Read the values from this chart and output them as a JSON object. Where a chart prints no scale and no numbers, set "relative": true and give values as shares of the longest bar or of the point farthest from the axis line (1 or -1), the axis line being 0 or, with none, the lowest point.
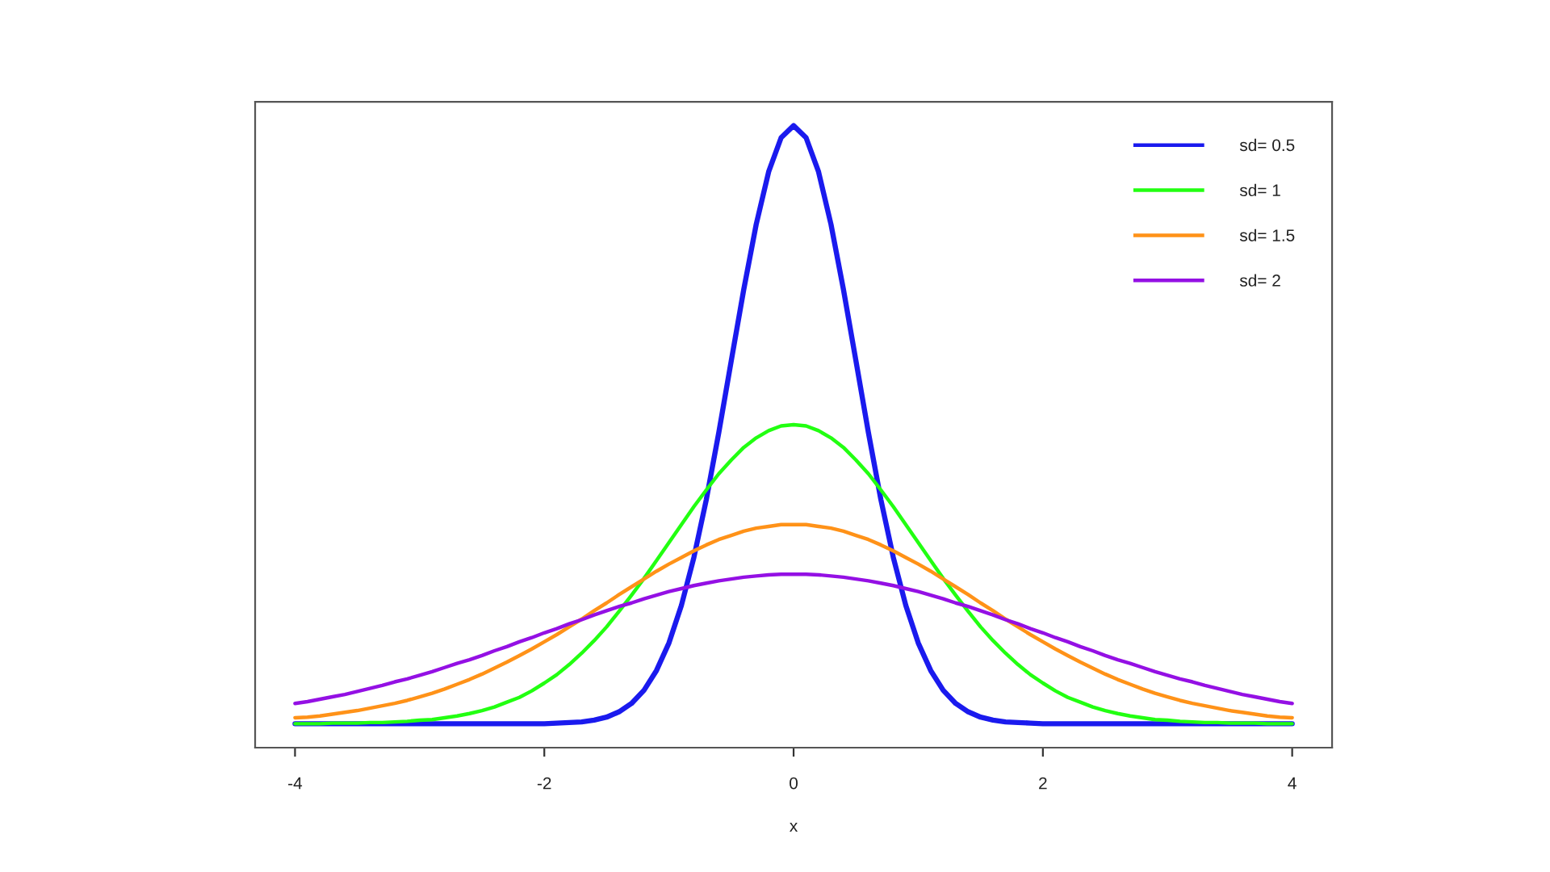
{
  "chart_data": {
    "type": "line",
    "relative": true,
    "xlabel": "x",
    "xlim": [
      -4.32,
      4.32
    ],
    "xticks": [
      -4,
      -2,
      0,
      2,
      4
    ],
    "legend": "top right",
    "line_style": "solid",
    "x": [
      -4,
      -3.9,
      -3.8,
      -3.7,
      -3.6,
      -3.5,
      -3.4,
      -3.3,
      -3.2,
      -3.1,
      -3,
      -2.9,
      -2.8,
      -2.7,
      -2.6,
      -2.5,
      -2.4,
      -2.3,
      -2.2,
      -2.1,
      -2,
      -1.9,
      -1.8,
      -1.7,
      -1.6,
      -1.5,
      -1.4,
      -1.3,
      -1.2,
      -1.1,
      -1,
      -0.9,
      -0.8,
      -0.7,
      -0.6,
      -0.5,
      -0.4,
      -0.3,
      -0.2,
      -0.1,
      0,
      0.1,
      0.2,
      0.3,
      0.4,
      0.5,
      0.6,
      0.7,
      0.8,
      0.9,
      1,
      1.1,
      1.2,
      1.3,
      1.4,
      1.5,
      1.6,
      1.7,
      1.8,
      1.9,
      2,
      2.1,
      2.2,
      2.3,
      2.4,
      2.5,
      2.6,
      2.7,
      2.8,
      2.9,
      3,
      3.1,
      3.2,
      3.3,
      3.4,
      3.5,
      3.6,
      3.7,
      3.8,
      3.9,
      4
    ],
    "series": [
      {
        "name": "sd= 0.5",
        "color": "#1a1aee",
        "values": [
          0,
          0,
          0,
          0,
          0,
          0,
          0,
          0,
          0,
          0,
          0,
          0,
          0,
          0,
          0,
          0,
          0,
          0,
          0,
          0,
          0,
          0.001,
          0.002,
          0.003,
          0.006,
          0.011,
          0.02,
          0.034,
          0.056,
          0.089,
          0.135,
          0.198,
          0.278,
          0.375,
          0.487,
          0.607,
          0.726,
          0.835,
          0.923,
          0.98,
          1,
          0.98,
          0.923,
          0.835,
          0.726,
          0.607,
          0.487,
          0.375,
          0.278,
          0.198,
          0.135,
          0.089,
          0.056,
          0.034,
          0.02,
          0.011,
          0.006,
          0.003,
          0.002,
          0.001,
          0,
          0,
          0,
          0,
          0,
          0,
          0,
          0,
          0,
          0,
          0,
          0,
          0,
          0,
          0,
          0,
          0,
          0,
          0,
          0,
          0
        ]
      },
      {
        "name": "sd= 1",
        "color": "#22ff11",
        "values": [
          0,
          0,
          0,
          0.001,
          0.001,
          0.001,
          0.002,
          0.002,
          0.003,
          0.004,
          0.006,
          0.007,
          0.01,
          0.013,
          0.017,
          0.022,
          0.028,
          0.036,
          0.044,
          0.055,
          0.068,
          0.082,
          0.099,
          0.118,
          0.139,
          0.162,
          0.188,
          0.215,
          0.243,
          0.273,
          0.303,
          0.333,
          0.363,
          0.391,
          0.418,
          0.441,
          0.462,
          0.478,
          0.49,
          0.498,
          0.5,
          0.498,
          0.49,
          0.478,
          0.462,
          0.441,
          0.418,
          0.391,
          0.363,
          0.333,
          0.303,
          0.273,
          0.243,
          0.215,
          0.188,
          0.162,
          0.139,
          0.118,
          0.099,
          0.082,
          0.068,
          0.055,
          0.044,
          0.036,
          0.028,
          0.022,
          0.017,
          0.013,
          0.01,
          0.007,
          0.006,
          0.004,
          0.003,
          0.002,
          0.002,
          0.001,
          0.001,
          0.001,
          0,
          0,
          0
        ]
      },
      {
        "name": "sd= 1.5",
        "color": "#ff9218",
        "values": [
          0.01,
          0.011,
          0.013,
          0.016,
          0.019,
          0.022,
          0.026,
          0.03,
          0.034,
          0.039,
          0.045,
          0.051,
          0.058,
          0.066,
          0.074,
          0.083,
          0.093,
          0.103,
          0.114,
          0.125,
          0.137,
          0.149,
          0.162,
          0.175,
          0.189,
          0.202,
          0.216,
          0.229,
          0.242,
          0.255,
          0.267,
          0.278,
          0.289,
          0.299,
          0.308,
          0.315,
          0.322,
          0.327,
          0.33,
          0.333,
          0.333,
          0.333,
          0.33,
          0.327,
          0.322,
          0.315,
          0.308,
          0.299,
          0.289,
          0.278,
          0.267,
          0.255,
          0.242,
          0.229,
          0.216,
          0.202,
          0.189,
          0.175,
          0.162,
          0.149,
          0.137,
          0.125,
          0.114,
          0.103,
          0.093,
          0.083,
          0.074,
          0.066,
          0.058,
          0.051,
          0.045,
          0.039,
          0.034,
          0.03,
          0.026,
          0.022,
          0.019,
          0.016,
          0.013,
          0.011,
          0.01
        ]
      },
      {
        "name": "sd= 2",
        "color": "#9410e4",
        "values": [
          0.034,
          0.037,
          0.041,
          0.045,
          0.049,
          0.054,
          0.059,
          0.064,
          0.07,
          0.075,
          0.081,
          0.087,
          0.094,
          0.101,
          0.107,
          0.114,
          0.122,
          0.129,
          0.137,
          0.144,
          0.152,
          0.159,
          0.167,
          0.174,
          0.182,
          0.189,
          0.196,
          0.202,
          0.209,
          0.215,
          0.221,
          0.226,
          0.231,
          0.235,
          0.239,
          0.242,
          0.245,
          0.247,
          0.249,
          0.25,
          0.25,
          0.25,
          0.249,
          0.247,
          0.245,
          0.242,
          0.239,
          0.235,
          0.231,
          0.226,
          0.221,
          0.215,
          0.209,
          0.202,
          0.196,
          0.189,
          0.182,
          0.174,
          0.167,
          0.159,
          0.152,
          0.144,
          0.137,
          0.129,
          0.122,
          0.114,
          0.107,
          0.101,
          0.094,
          0.087,
          0.081,
          0.075,
          0.07,
          0.064,
          0.059,
          0.054,
          0.049,
          0.045,
          0.041,
          0.037,
          0.034
        ]
      }
    ]
  }
}
